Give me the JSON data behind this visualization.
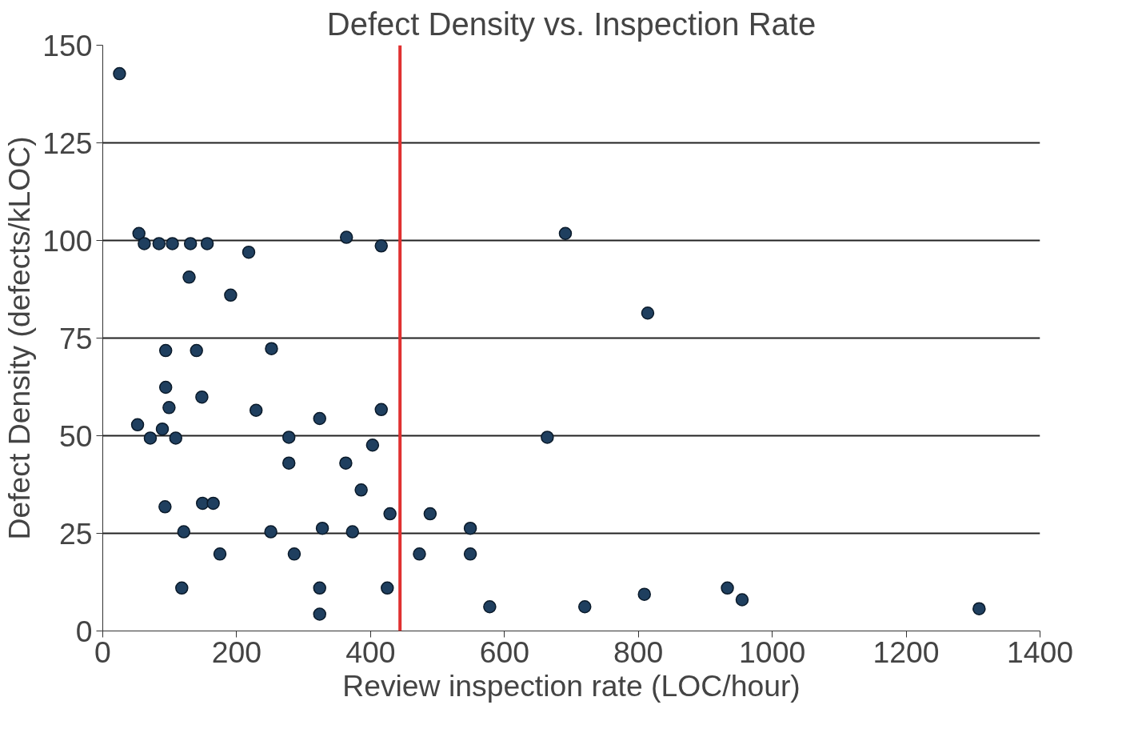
{
  "chart_data": {
    "type": "scatter",
    "title": "Defect Density vs. Inspection Rate",
    "xlabel": "Review inspection rate (LOC/hour)",
    "ylabel": "Defect Density (defects/kLOC)",
    "x": [
      25,
      54,
      62,
      84,
      104,
      131,
      156,
      218,
      129,
      191,
      364,
      416,
      691,
      814,
      94,
      140,
      252,
      94,
      99,
      148,
      229,
      416,
      324,
      52,
      89,
      71,
      109,
      278,
      664,
      403,
      278,
      363,
      386,
      93,
      149,
      165,
      429,
      489,
      121,
      251,
      328,
      373,
      549,
      175,
      286,
      473,
      549,
      118,
      324,
      425,
      324,
      578,
      720,
      809,
      933,
      955,
      1309
    ],
    "series": [
      {
        "color": "#1f3f5f",
        "values": [
          142.7,
          101.8,
          99.2,
          99.2,
          99.2,
          99.2,
          99.2,
          97,
          90.6,
          86,
          100.8,
          98.6,
          101.8,
          81.4,
          71.8,
          71.8,
          72.3,
          62.4,
          57.2,
          59.9,
          56.5,
          56.7,
          54.4,
          52.8,
          51.7,
          49.4,
          49.4,
          49.6,
          49.6,
          47.6,
          43,
          43,
          36.1,
          31.8,
          32.7,
          32.7,
          30,
          30,
          25.4,
          25.4,
          26.3,
          25.4,
          26.3,
          19.7,
          19.7,
          19.7,
          19.7,
          11,
          11,
          11,
          4.3,
          6.2,
          6.2,
          9.4,
          11,
          8,
          5.7
        ]
      }
    ],
    "xlim": [
      0,
      1400
    ],
    "xticks": [
      0,
      200,
      400,
      600,
      800,
      1000,
      1200,
      1400
    ],
    "ylim": [
      0,
      150
    ],
    "yticks": [
      0,
      25,
      50,
      75,
      100,
      125,
      150
    ],
    "grid": "y",
    "marker": "circle",
    "ref_lines": [
      {
        "axis": "x",
        "value": 444,
        "color": "#e03030"
      }
    ]
  }
}
